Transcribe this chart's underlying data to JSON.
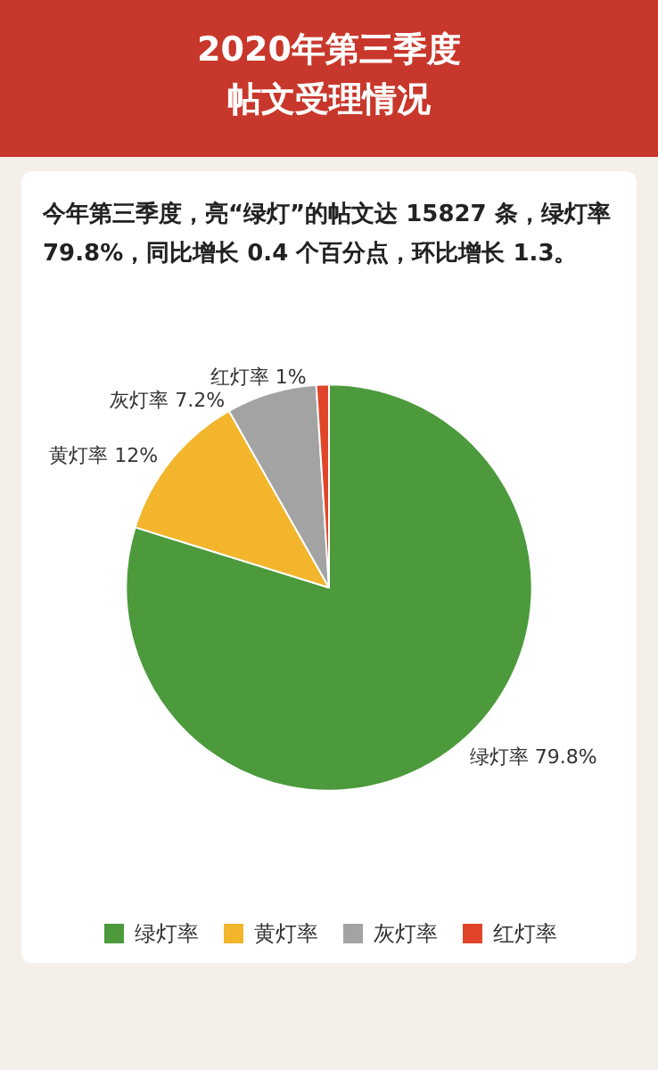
{
  "chart_data": {
    "type": "pie",
    "title": "2020年第三季度帖文受理情况",
    "subtitle": "今年第三季度，亮“绿灯”的帖文达 15827 条，绿灯率 79.8%，同比增长 0.4 个百分点，环比增长 1.3。",
    "categories": [
      "绿灯率",
      "黄灯率",
      "灰灯率",
      "红灯率"
    ],
    "values": [
      79.8,
      12,
      7.2,
      1
    ],
    "value_labels": [
      "79.8%",
      "12%",
      "7.2%",
      "1%"
    ],
    "colors": [
      "#4c9a3c",
      "#f2b52c",
      "#a3a3a3",
      "#e0452a"
    ],
    "legend": "bottom"
  }
}
